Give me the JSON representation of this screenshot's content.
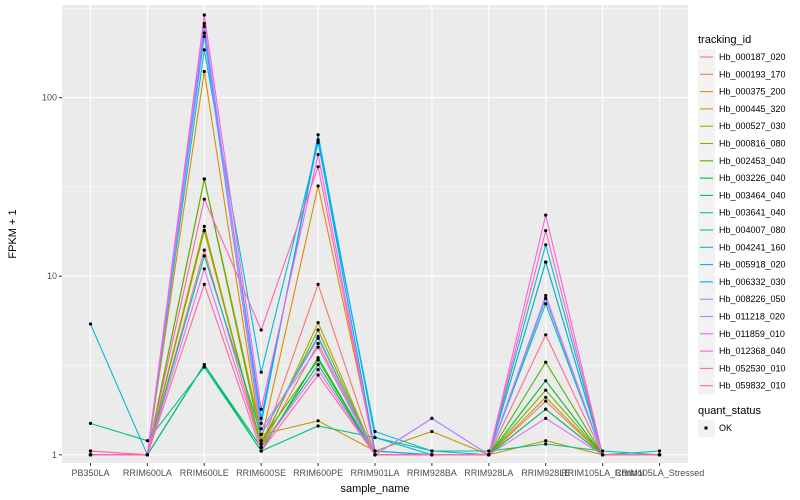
{
  "chart_data": {
    "type": "line",
    "xlabel": "sample_name",
    "ylabel": "FPKM + 1",
    "y_scale": "log10",
    "ylim": [
      0.9,
      330
    ],
    "y_ticks": [
      {
        "value": 1,
        "label": "1"
      },
      {
        "value": 10,
        "label": "10"
      },
      {
        "value": 100,
        "label": "100"
      }
    ],
    "grid": true,
    "legend_position": "right",
    "categories": [
      "PB350LA",
      "RRIM600LA",
      "RRIM600LE",
      "RRIM600SE",
      "RRIM600PE",
      "RRIM901LA",
      "RRIM928BA",
      "RRIM928LA",
      "RRIM928LE",
      "RRIM105LA_Control",
      "RRIM105LA_Stressed"
    ],
    "series": [
      {
        "name": "Hb_000187_020",
        "color": "#F8766D",
        "values": [
          1.0,
          1.0,
          14.0,
          1.1,
          9.0,
          1.0,
          1.0,
          1.0,
          2.0,
          1.0,
          1.0
        ]
      },
      {
        "name": "Hb_000193_170",
        "color": "#EE8043",
        "values": [
          1.0,
          1.0,
          18.0,
          1.1,
          4.2,
          1.0,
          1.0,
          1.0,
          1.8,
          1.0,
          1.0
        ]
      },
      {
        "name": "Hb_000375_200",
        "color": "#DF8B00",
        "values": [
          1.05,
          1.0,
          140.0,
          1.2,
          32.0,
          1.05,
          1.0,
          1.0,
          12.0,
          1.0,
          1.0
        ]
      },
      {
        "name": "Hb_000445_320",
        "color": "#C99800",
        "values": [
          1.0,
          1.0,
          35.0,
          1.3,
          1.55,
          1.05,
          1.35,
          1.0,
          1.2,
          1.0,
          1.0
        ]
      },
      {
        "name": "Hb_000527_030",
        "color": "#AEA200",
        "values": [
          1.0,
          1.0,
          19.0,
          1.1,
          5.5,
          1.0,
          1.0,
          1.0,
          2.1,
          1.0,
          1.0
        ]
      },
      {
        "name": "Hb_000816_080",
        "color": "#8AAB00",
        "values": [
          1.0,
          1.0,
          18.0,
          1.15,
          5.0,
          1.0,
          1.0,
          1.0,
          2.3,
          1.0,
          1.0
        ]
      },
      {
        "name": "Hb_002453_040",
        "color": "#53B400",
        "values": [
          1.0,
          1.0,
          35.0,
          1.2,
          3.4,
          1.0,
          1.0,
          1.0,
          3.3,
          1.0,
          1.0
        ]
      },
      {
        "name": "Hb_003226_040",
        "color": "#00BA38",
        "values": [
          1.0,
          1.0,
          3.2,
          1.05,
          3.5,
          1.0,
          1.0,
          1.0,
          2.6,
          1.0,
          1.0
        ]
      },
      {
        "name": "Hb_003464_040",
        "color": "#00BE6C",
        "values": [
          1.0,
          1.0,
          3.2,
          1.1,
          3.2,
          1.0,
          1.0,
          1.0,
          1.8,
          1.0,
          1.0
        ]
      },
      {
        "name": "Hb_003641_040",
        "color": "#00C094",
        "values": [
          1.5,
          1.2,
          3.1,
          1.05,
          1.45,
          1.25,
          1.05,
          1.05,
          1.15,
          1.05,
          1.0
        ]
      },
      {
        "name": "Hb_004007_080",
        "color": "#00C0B5",
        "values": [
          1.0,
          1.0,
          13.0,
          1.3,
          4.6,
          1.0,
          1.0,
          1.0,
          7.0,
          1.0,
          1.0
        ]
      },
      {
        "name": "Hb_004241_160",
        "color": "#00BDD0",
        "values": [
          5.4,
          1.0,
          185.0,
          2.9,
          56.0,
          1.35,
          1.05,
          1.0,
          15.0,
          1.0,
          1.05
        ]
      },
      {
        "name": "Hb_005918_020",
        "color": "#00B5E9",
        "values": [
          1.0,
          1.0,
          250.0,
          1.5,
          62.0,
          1.25,
          1.0,
          1.0,
          12.0,
          1.0,
          1.0
        ]
      },
      {
        "name": "Hb_006332_030",
        "color": "#00A7FF",
        "values": [
          1.0,
          1.0,
          230.0,
          1.6,
          58.0,
          1.05,
          1.0,
          1.0,
          7.5,
          1.0,
          1.0
        ]
      },
      {
        "name": "Hb_008226_050",
        "color": "#7F96FF",
        "values": [
          1.0,
          1.0,
          220.0,
          1.3,
          4.5,
          1.0,
          1.6,
          1.0,
          7.5,
          1.0,
          1.0
        ]
      },
      {
        "name": "Hb_011218_020",
        "color": "#BC81FF",
        "values": [
          1.0,
          1.0,
          260.0,
          1.4,
          4.0,
          1.0,
          1.6,
          1.0,
          7.8,
          1.0,
          1.0
        ]
      },
      {
        "name": "Hb_011859_010",
        "color": "#E26EF7",
        "values": [
          1.0,
          1.0,
          11.0,
          1.1,
          3.0,
          1.0,
          1.0,
          1.0,
          1.6,
          1.0,
          1.0
        ]
      },
      {
        "name": "Hb_012368_040",
        "color": "#F863DF",
        "values": [
          1.0,
          1.0,
          290.0,
          1.8,
          48.0,
          1.0,
          1.0,
          1.0,
          22.0,
          1.0,
          1.0
        ]
      },
      {
        "name": "Hb_052530_010",
        "color": "#FF62BC",
        "values": [
          1.0,
          1.0,
          27.0,
          5.0,
          41.0,
          1.0,
          1.0,
          1.0,
          18.0,
          1.0,
          1.0
        ]
      },
      {
        "name": "Hb_059832_010",
        "color": "#FF6A98",
        "values": [
          1.05,
          1.0,
          9.0,
          1.05,
          2.8,
          1.0,
          1.0,
          1.0,
          4.7,
          1.0,
          1.0
        ]
      }
    ]
  },
  "legend": {
    "tracking_title": "tracking_id",
    "quant_title": "quant_status",
    "quant_items": [
      {
        "label": "OK"
      }
    ]
  }
}
